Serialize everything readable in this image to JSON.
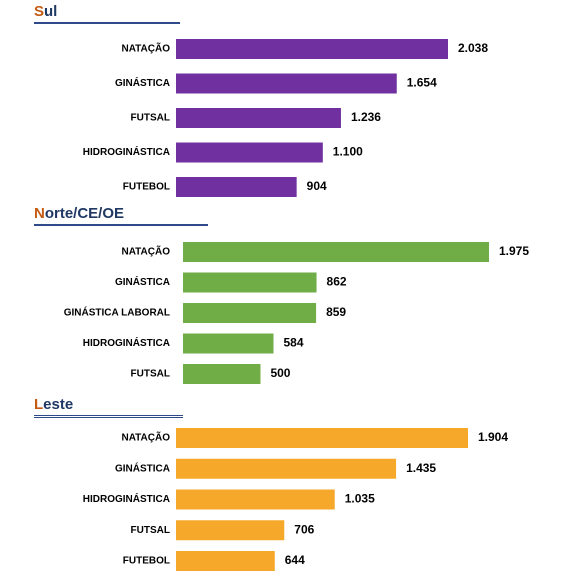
{
  "chart_data": [
    {
      "type": "bar",
      "orientation": "horizontal",
      "title": "Sul",
      "color": "#7030a0",
      "categories": [
        "NATAÇÃO",
        "GINÁSTICA",
        "FUTSAL",
        "HIDROGINÁSTICA",
        "FUTEBOL"
      ],
      "values": [
        2038,
        1654,
        1236,
        1100,
        904
      ],
      "value_labels": [
        "2.038",
        "1.654",
        "1.236",
        "1.100",
        "904"
      ]
    },
    {
      "type": "bar",
      "orientation": "horizontal",
      "title": "Norte/CE/OE",
      "color": "#70ad47",
      "categories": [
        "NATAÇÃO",
        "GINÁSTICA",
        "GINÁSTICA LABORAL",
        "HIDROGINÁSTICA",
        "FUTSAL"
      ],
      "values": [
        1975,
        862,
        859,
        584,
        500
      ],
      "value_labels": [
        "1.975",
        "862",
        "859",
        "584",
        "500"
      ]
    },
    {
      "type": "bar",
      "orientation": "horizontal",
      "title": "Leste",
      "color": "#f5a82a",
      "categories": [
        "NATAÇÃO",
        "GINÁSTICA",
        "HIDROGINÁSTICA",
        "FUTSAL",
        "FUTEBOL"
      ],
      "values": [
        1904,
        1435,
        1035,
        706,
        644
      ],
      "value_labels": [
        "1.904",
        "1.435",
        "1.035",
        "706",
        "644"
      ]
    }
  ]
}
